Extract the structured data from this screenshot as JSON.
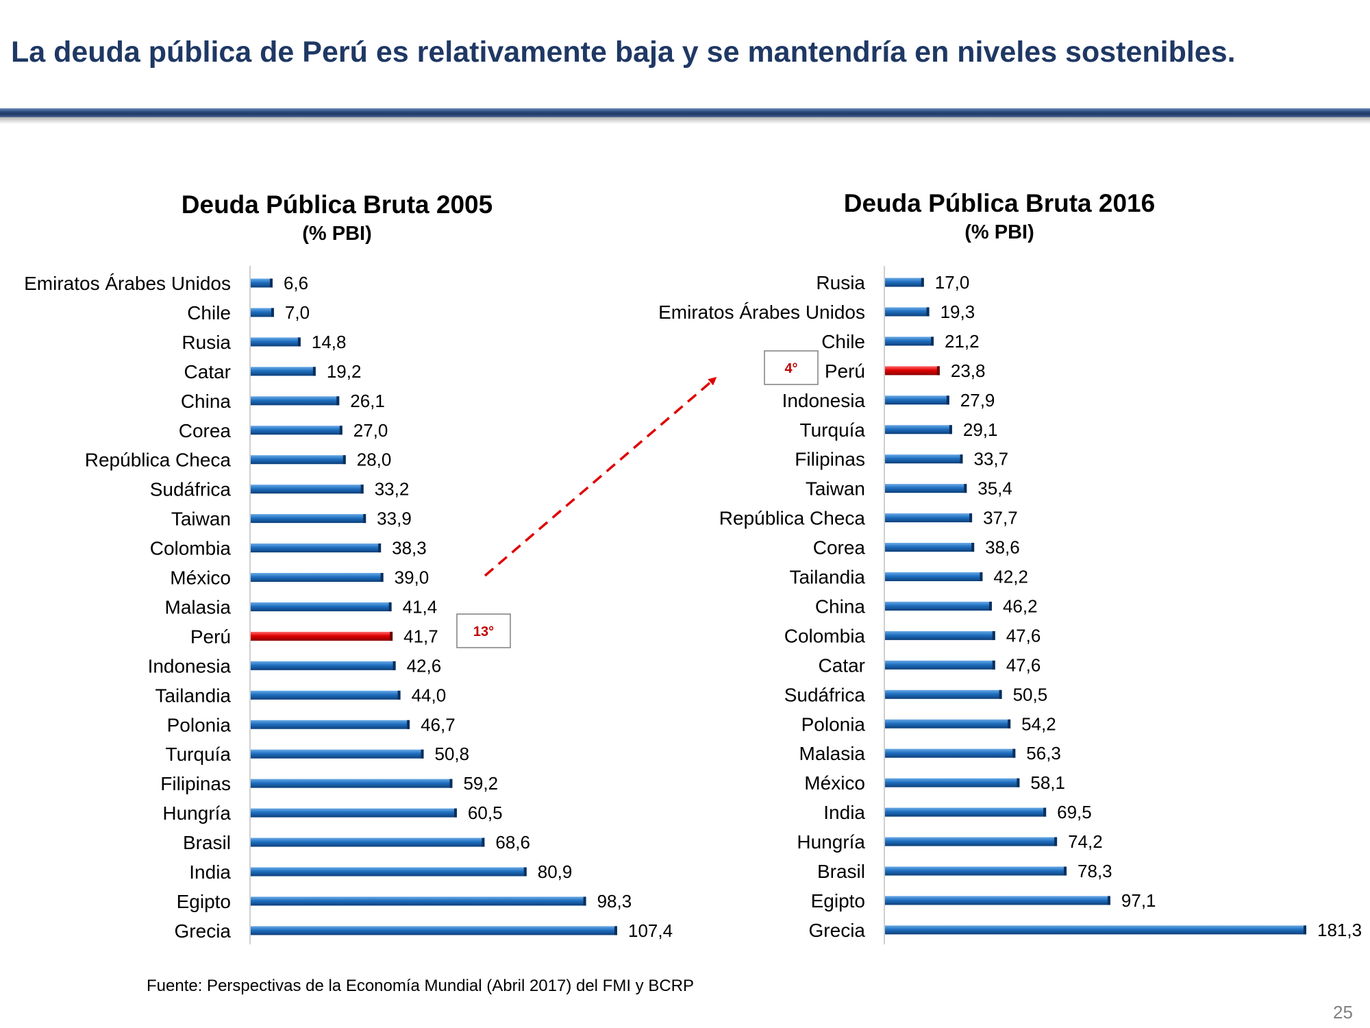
{
  "slide": {
    "title": "La deuda pública de Perú es relativamente baja y se mantendría en niveles sostenibles.",
    "source": "Fuente: Perspectivas de la Economía Mundial (Abril 2017) del FMI y BCRP",
    "page_number": "25"
  },
  "colors": {
    "title": "#1f3864",
    "bar": "#1f6fc0",
    "highlight_bar": "#e00000",
    "rank_text": "#c00000",
    "arrow": "#e00000"
  },
  "chart_data": [
    {
      "type": "bar",
      "orientation": "horizontal",
      "title": "Deuda Pública Bruta 2005",
      "subtitle": "(% PBI)",
      "xlim": [
        0,
        107.4
      ],
      "highlight": "Perú",
      "rank_label": "13°",
      "categories": [
        "Emiratos Árabes Unidos",
        "Chile",
        "Rusia",
        "Catar",
        "China",
        "Corea",
        "República Checa",
        "Sudáfrica",
        "Taiwan",
        "Colombia",
        "México",
        "Malasia",
        "Perú",
        "Indonesia",
        "Tailandia",
        "Polonia",
        "Turquía",
        "Filipinas",
        "Hungría",
        "Brasil",
        "India",
        "Egipto",
        "Grecia"
      ],
      "values": [
        6.6,
        7.0,
        14.8,
        19.2,
        26.1,
        27.0,
        28.0,
        33.2,
        33.9,
        38.3,
        39.0,
        41.4,
        41.7,
        42.6,
        44.0,
        46.7,
        50.8,
        59.2,
        60.5,
        68.6,
        80.9,
        98.3,
        107.4
      ],
      "labels": [
        "6,6",
        "7,0",
        "14,8",
        "19,2",
        "26,1",
        "27,0",
        "28,0",
        "33,2",
        "33,9",
        "38,3",
        "39,0",
        "41,4",
        "41,7",
        "42,6",
        "44,0",
        "46,7",
        "50,8",
        "59,2",
        "60,5",
        "68,6",
        "80,9",
        "98,3",
        "107,4"
      ]
    },
    {
      "type": "bar",
      "orientation": "horizontal",
      "title": "Deuda Pública Bruta 2016",
      "subtitle": "(% PBI)",
      "xlim": [
        0,
        181.3
      ],
      "highlight": "Perú",
      "rank_label": "4°",
      "categories": [
        "Rusia",
        "Emiratos Árabes Unidos",
        "Chile",
        "Perú",
        "Indonesia",
        "Turquía",
        "Filipinas",
        "Taiwan",
        "República Checa",
        "Corea",
        "Tailandia",
        "China",
        "Colombia",
        "Catar",
        "Sudáfrica",
        "Polonia",
        "Malasia",
        "México",
        "India",
        "Hungría",
        "Brasil",
        "Egipto",
        "Grecia"
      ],
      "values": [
        17.0,
        19.3,
        21.2,
        23.8,
        27.9,
        29.1,
        33.7,
        35.4,
        37.7,
        38.6,
        42.2,
        46.2,
        47.6,
        47.6,
        50.5,
        54.2,
        56.3,
        58.1,
        69.5,
        74.2,
        78.3,
        97.1,
        181.3
      ],
      "labels": [
        "17,0",
        "19,3",
        "21,2",
        "23,8",
        "27,9",
        "29,1",
        "33,7",
        "35,4",
        "37,7",
        "38,6",
        "42,2",
        "46,2",
        "47,6",
        "47,6",
        "50,5",
        "54,2",
        "56,3",
        "58,1",
        "69,5",
        "74,2",
        "78,3",
        "97,1",
        "181,3"
      ]
    }
  ]
}
